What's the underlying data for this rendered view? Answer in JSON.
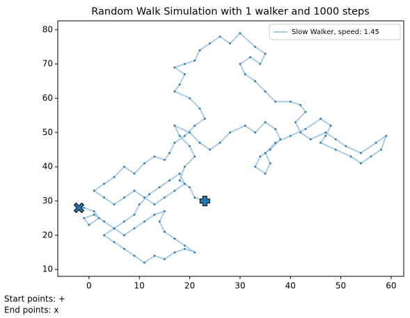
{
  "chart_data": {
    "type": "line",
    "title": "Random Walk Simulation with 1 walker and 1000 steps",
    "series": [
      {
        "name": "Slow Walker, speed: 1.45",
        "color": "#1f77b4",
        "line_color": "#a9cbe6",
        "x": [
          23,
          21,
          20,
          18,
          19,
          21,
          20,
          18,
          17,
          20,
          22,
          24,
          26,
          28,
          31,
          33,
          35,
          37,
          38,
          36,
          34,
          33,
          35,
          36,
          35,
          37,
          40,
          43,
          46,
          48,
          47,
          46,
          49,
          52,
          54,
          56,
          58,
          59,
          57,
          54,
          51,
          49,
          47,
          44,
          42,
          41,
          43,
          42,
          40,
          37,
          35,
          33,
          31,
          30,
          32,
          34,
          35,
          33,
          30,
          28,
          26,
          24,
          22,
          21,
          19,
          17,
          19,
          18,
          17,
          20,
          22,
          23,
          21,
          19,
          17,
          16,
          15,
          13,
          11,
          9,
          7,
          5,
          3,
          1,
          3,
          5,
          7,
          9,
          11,
          13,
          15,
          17,
          19,
          18,
          16,
          14,
          12,
          10,
          9,
          7,
          5,
          3,
          5,
          7,
          9,
          11,
          13,
          15,
          17,
          19,
          21,
          19,
          17,
          15,
          14,
          15,
          13,
          11,
          9,
          7,
          5,
          3,
          1,
          -1,
          0,
          2,
          1,
          -1,
          -2
        ],
        "y": [
          30,
          31,
          34,
          36,
          40,
          43,
          46,
          49,
          52,
          50,
          47,
          45,
          47,
          50,
          52,
          50,
          53,
          51,
          48,
          45,
          43,
          40,
          38,
          41,
          44,
          47,
          49,
          51,
          54,
          52,
          49,
          47,
          45,
          43,
          41,
          43,
          45,
          49,
          47,
          44,
          46,
          48,
          50,
          48,
          50,
          53,
          56,
          58,
          59,
          59,
          62,
          65,
          67,
          70,
          72,
          70,
          73,
          75,
          79,
          76,
          78,
          76,
          74,
          71,
          70,
          69,
          67,
          64,
          62,
          60,
          57,
          54,
          52,
          49,
          47,
          44,
          42,
          43,
          41,
          38,
          40,
          37,
          35,
          33,
          31,
          29,
          31,
          33,
          31,
          29,
          31,
          33,
          35,
          38,
          36,
          34,
          32,
          29,
          26,
          24,
          22,
          20,
          18,
          16,
          14,
          12,
          14,
          13,
          15,
          16,
          15,
          17,
          19,
          21,
          24,
          27,
          26,
          24,
          22,
          20,
          22,
          24,
          26,
          25,
          23,
          25,
          27,
          28,
          28
        ]
      }
    ],
    "start_label": "Start points: +",
    "end_label": "End points: x",
    "xlim": [
      -6.2,
      62.5
    ],
    "ylim": [
      8.0,
      82.6
    ],
    "xticks": [
      0,
      10,
      20,
      30,
      40,
      50,
      60
    ],
    "yticks": [
      10,
      20,
      30,
      40,
      50,
      60,
      70,
      80
    ],
    "legend": "upper right"
  }
}
